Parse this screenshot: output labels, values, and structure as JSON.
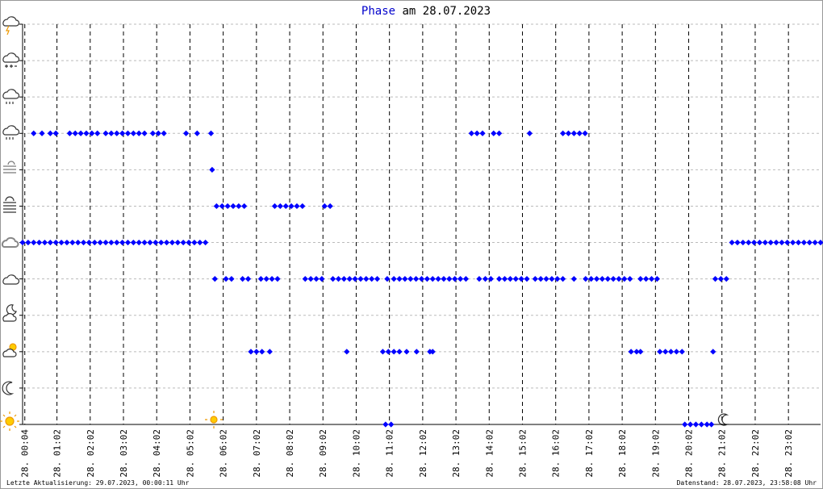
{
  "chart_data": {
    "type": "scatter",
    "title_keyword": "Phase",
    "title_rest": "am 28.07.2023",
    "footer_left": "Letzte Aktualisierung: 29.07.2023, 00:00:11 Uhr",
    "footer_right": "Datenstand: 28.07.2023, 23:58:08 Uhr",
    "xlim": [
      0,
      1440
    ],
    "ylim": [
      0,
      11
    ],
    "yticks": [
      0,
      1,
      2,
      3,
      4,
      5,
      6,
      7,
      8,
      9,
      10,
      11
    ],
    "xticks": [
      {
        "value": 4,
        "label": "28. 00:04"
      },
      {
        "value": 62,
        "label": "28. 01:02"
      },
      {
        "value": 122,
        "label": "28. 02:02"
      },
      {
        "value": 182,
        "label": "28. 03:02"
      },
      {
        "value": 242,
        "label": "28. 04:02"
      },
      {
        "value": 302,
        "label": "28. 05:02"
      },
      {
        "value": 362,
        "label": "28. 06:02"
      },
      {
        "value": 422,
        "label": "28. 07:02"
      },
      {
        "value": 482,
        "label": "28. 08:02"
      },
      {
        "value": 542,
        "label": "28. 09:02"
      },
      {
        "value": 602,
        "label": "28. 10:02"
      },
      {
        "value": 662,
        "label": "28. 11:02"
      },
      {
        "value": 722,
        "label": "28. 12:02"
      },
      {
        "value": 782,
        "label": "28. 13:02"
      },
      {
        "value": 842,
        "label": "28. 14:02"
      },
      {
        "value": 902,
        "label": "28. 15:02"
      },
      {
        "value": 962,
        "label": "28. 16:02"
      },
      {
        "value": 1022,
        "label": "28. 17:02"
      },
      {
        "value": 1082,
        "label": "28. 18:02"
      },
      {
        "value": 1142,
        "label": "28. 19:02"
      },
      {
        "value": 1202,
        "label": "28. 20:02"
      },
      {
        "value": 1262,
        "label": "28. 21:02"
      },
      {
        "value": 1322,
        "label": "28. 22:02"
      },
      {
        "value": 1382,
        "label": "28. 23:02"
      }
    ],
    "grid": true,
    "series": [
      {
        "color": "#0000ff",
        "x": [
          0,
          10,
          20,
          30,
          40,
          50,
          60,
          70,
          80,
          90,
          100,
          110,
          120,
          130,
          140,
          150,
          160,
          170,
          180,
          190,
          200,
          210,
          220,
          230,
          240,
          250,
          260,
          270,
          280,
          290,
          300,
          310,
          320,
          330,
          1280,
          1290,
          1300,
          1310,
          1320,
          1330,
          1340,
          1350,
          1360,
          1370,
          1380,
          1390,
          1400,
          1410,
          1420,
          1430,
          1440
        ],
        "values": [
          5,
          5,
          5,
          5,
          5,
          5,
          5,
          5,
          5,
          5,
          5,
          5,
          5,
          5,
          5,
          5,
          5,
          5,
          5,
          5,
          5,
          5,
          5,
          5,
          5,
          5,
          5,
          5,
          5,
          5,
          5,
          5,
          5,
          5,
          5,
          5,
          5,
          5,
          5,
          5,
          5,
          5,
          5,
          5,
          5,
          5,
          5,
          5,
          5,
          5,
          5
        ]
      },
      {
        "color": "#0000ff",
        "x": [
          20,
          35,
          50,
          60,
          85,
          95,
          105,
          115,
          125,
          135,
          150,
          160,
          170,
          180,
          190,
          200,
          210,
          220,
          235,
          245,
          255,
          295,
          315,
          340,
          810,
          820,
          830,
          850,
          860,
          915,
          975,
          985,
          995,
          1005,
          1015
        ],
        "values": [
          8,
          8,
          8,
          8,
          8,
          8,
          8,
          8,
          8,
          8,
          8,
          8,
          8,
          8,
          8,
          8,
          8,
          8,
          8,
          8,
          8,
          8,
          8,
          8,
          8,
          8,
          8,
          8,
          8,
          8,
          8,
          8,
          8,
          8,
          8
        ]
      },
      {
        "color": "#0000ff",
        "x": [
          342
        ],
        "values": [
          7
        ]
      },
      {
        "color": "#0000ff",
        "x": [
          350,
          360,
          370,
          380,
          390,
          400,
          455,
          465,
          475,
          485,
          495,
          505,
          545,
          555
        ],
        "values": [
          6,
          6,
          6,
          6,
          6,
          6,
          6,
          6,
          6,
          6,
          6,
          6,
          6,
          6
        ]
      },
      {
        "color": "#0000ff",
        "x": [
          347,
          367,
          377,
          397,
          407,
          430,
          440,
          450,
          460,
          510,
          520,
          530,
          540,
          560,
          570,
          580,
          590,
          600,
          610,
          620,
          630,
          640,
          658,
          670,
          680,
          690,
          700,
          710,
          720,
          730,
          740,
          750,
          760,
          770,
          780,
          790,
          800,
          824,
          835,
          845,
          860,
          870,
          880,
          890,
          900,
          910,
          925,
          935,
          945,
          955,
          965,
          975,
          995,
          1016,
          1026,
          1036,
          1046,
          1056,
          1066,
          1076,
          1086,
          1096,
          1115,
          1125,
          1135,
          1145,
          1250,
          1260,
          1270
        ],
        "values": [
          4,
          4,
          4,
          4,
          4,
          4,
          4,
          4,
          4,
          4,
          4,
          4,
          4,
          4,
          4,
          4,
          4,
          4,
          4,
          4,
          4,
          4,
          4,
          4,
          4,
          4,
          4,
          4,
          4,
          4,
          4,
          4,
          4,
          4,
          4,
          4,
          4,
          4,
          4,
          4,
          4,
          4,
          4,
          4,
          4,
          4,
          4,
          4,
          4,
          4,
          4,
          4,
          4,
          4,
          4,
          4,
          4,
          4,
          4,
          4,
          4,
          4,
          4,
          4,
          4,
          4,
          4,
          4,
          4
        ]
      },
      {
        "color": "#0000ff",
        "x": [
          412,
          422,
          432,
          446,
          585,
          650,
          660,
          670,
          680,
          693,
          711,
          735,
          740,
          1098,
          1108,
          1115,
          1150,
          1160,
          1170,
          1180,
          1190,
          1246
        ],
        "values": [
          2,
          2,
          2,
          2,
          2,
          2,
          2,
          2,
          2,
          2,
          2,
          2,
          2,
          2,
          2,
          2,
          2,
          2,
          2,
          2,
          2,
          2
        ]
      },
      {
        "color": "#0000ff",
        "x": [
          655,
          665,
          1195,
          1205,
          1215,
          1225,
          1235,
          1243
        ],
        "values": [
          0,
          0,
          0,
          0,
          0,
          0,
          0,
          0
        ]
      }
    ]
  }
}
